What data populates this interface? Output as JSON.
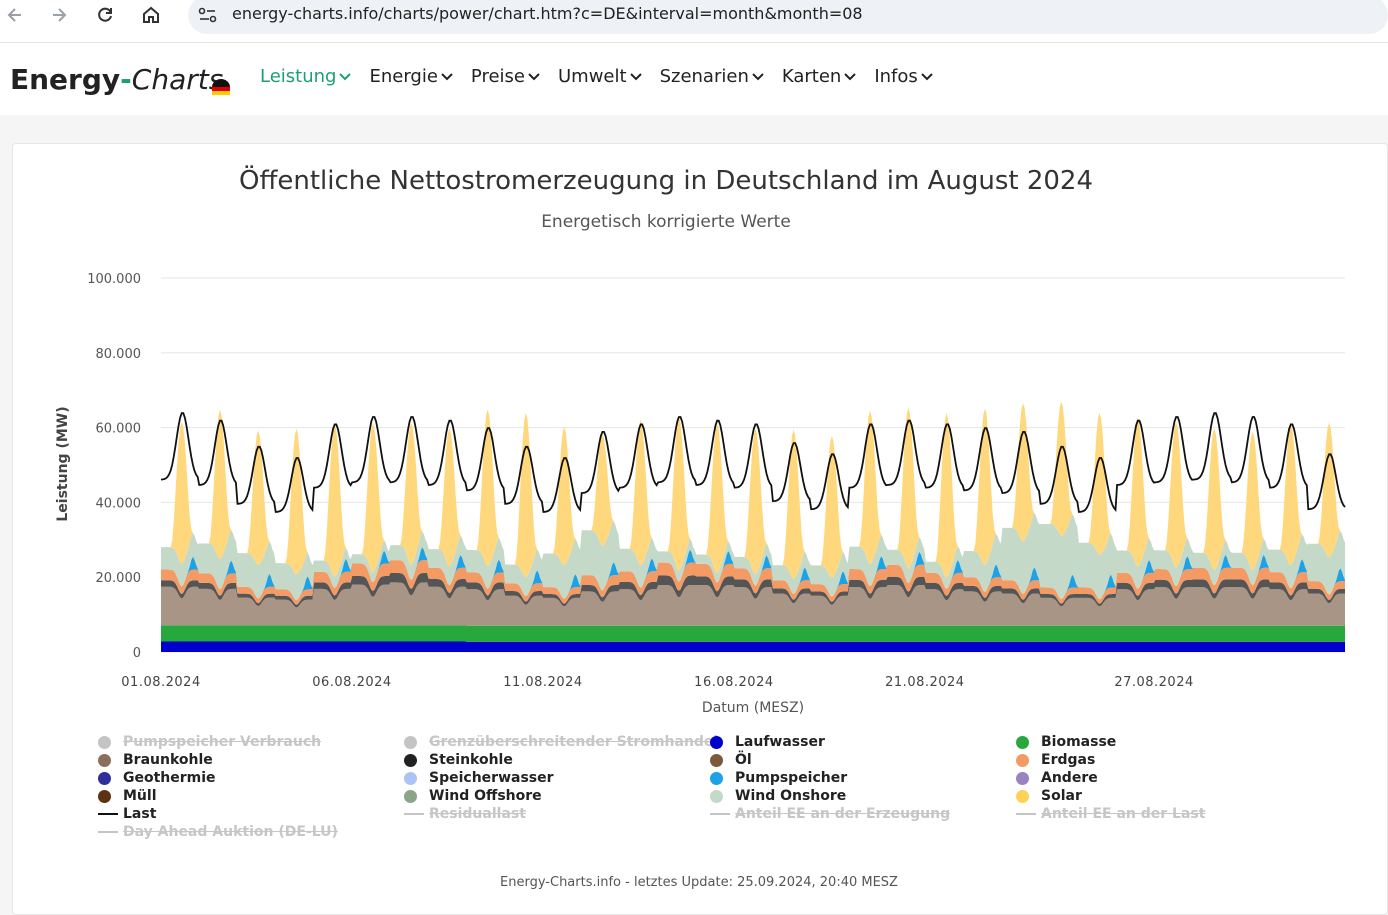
{
  "browser": {
    "url": "energy-charts.info/charts/power/chart.htm?c=DE&interval=month&month=08"
  },
  "site": {
    "logo_bold": "Energy",
    "logo_dash": "-",
    "logo_italic": "Charts",
    "menu": [
      {
        "label": "Leistung",
        "active": true
      },
      {
        "label": "Energie",
        "active": false
      },
      {
        "label": "Preise",
        "active": false
      },
      {
        "label": "Umwelt",
        "active": false
      },
      {
        "label": "Szenarien",
        "active": false
      },
      {
        "label": "Karten",
        "active": false
      },
      {
        "label": "Infos",
        "active": false
      }
    ]
  },
  "footer": "Energy-Charts.info - letztes Update: 25.09.2024, 20:40 MESZ",
  "chart_data": {
    "type": "area",
    "title": "Öffentliche Nettostromerzeugung in Deutschland im August 2024",
    "subtitle": "Energetisch korrigierte Werte",
    "xlabel": "Datum (MESZ)",
    "ylabel": "Leistung (MW)",
    "ylim": [
      0,
      100000
    ],
    "xlim": [
      "2024-08-01",
      "2024-09-01"
    ],
    "y_ticks": [
      "0",
      "20.000",
      "40.000",
      "60.000",
      "80.000",
      "100.000"
    ],
    "x_ticks": [
      "01.08.2024",
      "06.08.2024",
      "11.08.2024",
      "16.08.2024",
      "21.08.2024",
      "27.08.2024"
    ],
    "grid": true,
    "stacked": true,
    "sampling": "daily noon peak (approx.)",
    "x": [
      "2024-08-01",
      "2024-08-02",
      "2024-08-03",
      "2024-08-04",
      "2024-08-05",
      "2024-08-06",
      "2024-08-07",
      "2024-08-08",
      "2024-08-09",
      "2024-08-10",
      "2024-08-11",
      "2024-08-12",
      "2024-08-13",
      "2024-08-14",
      "2024-08-15",
      "2024-08-16",
      "2024-08-17",
      "2024-08-18",
      "2024-08-19",
      "2024-08-20",
      "2024-08-21",
      "2024-08-22",
      "2024-08-23",
      "2024-08-24",
      "2024-08-25",
      "2024-08-26",
      "2024-08-27",
      "2024-08-28",
      "2024-08-29",
      "2024-08-30",
      "2024-08-31"
    ],
    "series": [
      {
        "name": "Laufwasser",
        "color": "#0000cc",
        "values": [
          2800,
          2800,
          2800,
          2800,
          2800,
          2800,
          2800,
          2800,
          2700,
          2700,
          2700,
          2700,
          2700,
          2700,
          2700,
          2700,
          2700,
          2700,
          2700,
          2700,
          2700,
          2700,
          2700,
          2700,
          2700,
          2700,
          2700,
          2700,
          2700,
          2700,
          2700
        ]
      },
      {
        "name": "Biomasse",
        "color": "#26a83c",
        "values": [
          4300,
          4300,
          4300,
          4300,
          4300,
          4300,
          4300,
          4300,
          4300,
          4300,
          4300,
          4300,
          4300,
          4300,
          4300,
          4300,
          4300,
          4300,
          4300,
          4300,
          4300,
          4300,
          4300,
          4300,
          4300,
          4300,
          4300,
          4300,
          4300,
          4300,
          4300
        ]
      },
      {
        "name": "Braunkohle",
        "color": "#a89585",
        "values": [
          9000,
          8500,
          6500,
          6000,
          8500,
          9500,
          10000,
          9000,
          8500,
          7000,
          6500,
          8000,
          8500,
          9500,
          9500,
          9000,
          7500,
          7000,
          9000,
          9500,
          8500,
          8000,
          7500,
          6500,
          6500,
          8500,
          9000,
          9000,
          9000,
          8500,
          7500
        ]
      },
      {
        "name": "Steinkohle",
        "color": "#555555",
        "values": [
          1500,
          1400,
          900,
          900,
          1500,
          2000,
          2200,
          1800,
          1600,
          1100,
          900,
          1500,
          1700,
          2200,
          2000,
          1800,
          1200,
          1000,
          1700,
          1900,
          1500,
          1300,
          1200,
          900,
          900,
          1500,
          1700,
          1800,
          1800,
          1600,
          1100
        ]
      },
      {
        "name": "Erdgas",
        "color": "#f49b65",
        "values": [
          2500,
          2200,
          1600,
          1500,
          2500,
          2900,
          3000,
          2600,
          2300,
          1800,
          1600,
          2300,
          2500,
          3000,
          2900,
          2600,
          1900,
          1700,
          2500,
          2800,
          2300,
          2000,
          1900,
          1500,
          1500,
          2300,
          2500,
          2700,
          2700,
          2400,
          1800
        ]
      },
      {
        "name": "Pumpspeicher",
        "color": "#1ea2e6",
        "values": [
          0,
          0,
          0,
          0,
          0,
          0,
          0,
          0,
          0,
          0,
          0,
          0,
          0,
          0,
          0,
          0,
          0,
          0,
          0,
          0,
          0,
          0,
          0,
          0,
          0,
          0,
          0,
          0,
          0,
          0,
          0
        ]
      },
      {
        "name": "Wind Onshore",
        "color": "#c5d9c8",
        "values": [
          6000,
          8000,
          9000,
          7000,
          3000,
          2500,
          4000,
          5000,
          6000,
          5000,
          9000,
          12000,
          6000,
          3000,
          2500,
          3000,
          4000,
          5000,
          6000,
          4000,
          3000,
          7000,
          14000,
          17000,
          12000,
          6000,
          5000,
          4000,
          4000,
          6000,
          10000
        ]
      },
      {
        "name": "Solar",
        "color": "#ffd87d",
        "values": [
          38000,
          40000,
          36000,
          39000,
          41000,
          40000,
          38000,
          37000,
          42000,
          44000,
          37000,
          30000,
          39000,
          41000,
          40000,
          39000,
          40000,
          38000,
          41000,
          43000,
          44000,
          42000,
          37000,
          36000,
          38000,
          40000,
          39000,
          38000,
          37000,
          38000,
          36000
        ]
      }
    ],
    "line_series": [
      {
        "name": "Last",
        "color": "#111111",
        "values": [
          64000,
          62000,
          55000,
          52000,
          61000,
          63000,
          63000,
          62000,
          60000,
          55000,
          52000,
          59000,
          61000,
          63000,
          62000,
          61000,
          56000,
          53000,
          61000,
          62000,
          61000,
          60000,
          59000,
          55000,
          52000,
          62000,
          63000,
          64000,
          63000,
          61000,
          53000
        ]
      }
    ],
    "legend": [
      {
        "label": "Pumpspeicher Verbrauch",
        "color": "#c4c4c4",
        "symbol": "dot",
        "hidden": true
      },
      {
        "label": "Grenzüberschreitender Stromhandel",
        "color": "#c4c4c4",
        "symbol": "dot",
        "hidden": true
      },
      {
        "label": "Laufwasser",
        "color": "#0000cc",
        "symbol": "dot",
        "hidden": false
      },
      {
        "label": "Biomasse",
        "color": "#26a83c",
        "symbol": "dot",
        "hidden": false
      },
      {
        "label": "Braunkohle",
        "color": "#8b6f5e",
        "symbol": "dot",
        "hidden": false
      },
      {
        "label": "Steinkohle",
        "color": "#222222",
        "symbol": "dot",
        "hidden": false
      },
      {
        "label": "Öl",
        "color": "#7a5a3c",
        "symbol": "dot",
        "hidden": false
      },
      {
        "label": "Erdgas",
        "color": "#f49b65",
        "symbol": "dot",
        "hidden": false
      },
      {
        "label": "Geothermie",
        "color": "#2e2e9c",
        "symbol": "dot",
        "hidden": false
      },
      {
        "label": "Speicherwasser",
        "color": "#a9c4f5",
        "symbol": "dot",
        "hidden": false
      },
      {
        "label": "Pumpspeicher",
        "color": "#1ea2e6",
        "symbol": "dot",
        "hidden": false
      },
      {
        "label": "Andere",
        "color": "#9a84c0",
        "symbol": "dot",
        "hidden": false
      },
      {
        "label": "Müll",
        "color": "#5a3312",
        "symbol": "dot",
        "hidden": false
      },
      {
        "label": "Wind Offshore",
        "color": "#8aa58a",
        "symbol": "dot",
        "hidden": false
      },
      {
        "label": "Wind Onshore",
        "color": "#c5d9c8",
        "symbol": "dot",
        "hidden": false
      },
      {
        "label": "Solar",
        "color": "#ffd256",
        "symbol": "dot",
        "hidden": false
      },
      {
        "label": "Last",
        "color": "#111111",
        "symbol": "line",
        "hidden": false
      },
      {
        "label": "Residuallast",
        "color": "#c4c4c4",
        "symbol": "line",
        "hidden": true
      },
      {
        "label": "Anteil EE an der Erzeugung",
        "color": "#c4c4c4",
        "symbol": "line",
        "hidden": true
      },
      {
        "label": "Anteil EE an der Last",
        "color": "#c4c4c4",
        "symbol": "line",
        "hidden": true
      },
      {
        "label": "Day Ahead Auktion (DE-LU)",
        "color": "#c4c4c4",
        "symbol": "line",
        "hidden": true
      }
    ]
  }
}
